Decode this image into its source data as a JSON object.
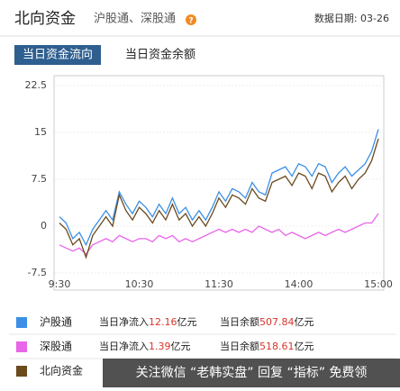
{
  "header": {
    "title": "北向资金",
    "subtitle": "沪股通、深股通",
    "date": "数据日期: 03-26"
  },
  "tabs": [
    "当日资金流向",
    "当日资金余额"
  ],
  "chart_data": {
    "type": "line",
    "categories": [
      "9:30",
      null,
      null,
      null,
      null,
      null,
      null,
      null,
      null,
      null,
      null,
      null,
      "10:30",
      null,
      null,
      null,
      null,
      null,
      null,
      null,
      null,
      null,
      null,
      null,
      "11:30",
      null,
      null,
      null,
      null,
      null,
      null,
      null,
      null,
      null,
      null,
      null,
      "14:00",
      null,
      null,
      null,
      null,
      null,
      null,
      null,
      null,
      null,
      null,
      null,
      "15:00"
    ],
    "series": [
      {
        "name": "沪股通",
        "color": "#3b8fe6",
        "values": [
          1.5,
          0.5,
          -2,
          -1,
          -3,
          -0.5,
          1,
          2.5,
          1,
          5.5,
          3.5,
          2,
          4,
          3,
          1.5,
          3.5,
          2,
          4.5,
          2,
          3,
          1,
          2.5,
          1,
          3,
          5.5,
          4,
          6,
          5.5,
          4.5,
          7,
          5.5,
          5,
          8.5,
          9,
          9.5,
          8,
          10,
          9.5,
          8,
          10,
          9.5,
          7,
          8.5,
          9.5,
          8,
          9,
          10,
          12,
          15.5
        ]
      },
      {
        "name": "深股通",
        "color": "#e866e8",
        "values": [
          -3,
          -3.5,
          -4,
          -3.5,
          -4.5,
          -3,
          -2.5,
          -2,
          -2.5,
          -1.5,
          -2,
          -2.5,
          -2,
          -2,
          -2.5,
          -1.5,
          -2,
          -1.5,
          -2.5,
          -2,
          -2.5,
          -2,
          -1.5,
          -1,
          -0.5,
          -1,
          -0.5,
          -1,
          -0.5,
          -1,
          0,
          -0.5,
          -1,
          -0.5,
          -1.5,
          -1,
          -1.5,
          -2,
          -1.5,
          -1,
          -1.5,
          -1,
          -0.5,
          -1,
          -0.5,
          0,
          0.5,
          0.5,
          2
        ]
      },
      {
        "name": "北向资金",
        "color": "#6b4a1c",
        "values": [
          0.5,
          -0.5,
          -3,
          -2,
          -5,
          -1.5,
          0,
          1.5,
          0,
          5,
          2.5,
          1,
          3,
          2,
          0.5,
          2.5,
          1,
          3.5,
          1,
          2,
          0,
          1.5,
          0,
          2,
          4.5,
          3,
          5,
          4.5,
          3.5,
          6,
          4.5,
          4,
          7,
          7.5,
          8,
          6.5,
          8.5,
          8,
          6,
          8.5,
          8,
          5.5,
          7,
          8,
          6,
          7.5,
          8.5,
          10.5,
          14
        ]
      }
    ],
    "ylim": [
      -7.5,
      22.5
    ],
    "yticks": [
      22.5,
      15,
      7.5,
      0,
      -7.5
    ],
    "grid": true
  },
  "summary": [
    {
      "inflow_label": "当日净流入",
      "inflow": 12.16,
      "inflow_unit": "亿元",
      "balance_label": "当日余额",
      "balance": 507.84,
      "balance_unit": "亿元"
    },
    {
      "inflow_label": "当日净流入",
      "inflow": 1.39,
      "inflow_unit": "亿元",
      "balance_label": "当日余额",
      "balance": 518.61,
      "balance_unit": "亿元"
    }
  ],
  "watermark": "关注微信 “老韩实盘” 回复 “指标” 免费领"
}
